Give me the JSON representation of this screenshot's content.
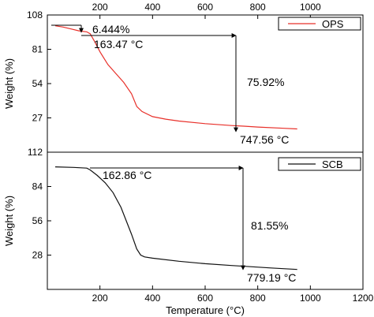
{
  "chart_data": [
    {
      "type": "line",
      "name": "top-panel",
      "xlim": [
        0,
        1200
      ],
      "ylim": [
        0,
        108
      ],
      "top_x_ticks": [
        "200",
        "400",
        "600",
        "800",
        "1000"
      ],
      "y_ticks": [
        "27",
        "54",
        "81",
        "108"
      ],
      "ylabel": "Weight (%)",
      "legend": {
        "label": "OPS",
        "color": "#e8302a",
        "position": "top-right"
      },
      "series": [
        {
          "name": "OPS",
          "color": "#e8302a",
          "x": [
            30,
            60,
            90,
            120,
            150,
            163,
            180,
            200,
            230,
            260,
            290,
            320,
            340,
            360,
            400,
            450,
            500,
            600,
            700,
            747,
            800,
            900,
            950
          ],
          "y": [
            99.5,
            98.5,
            97,
            95.5,
            94.7,
            93.2,
            87,
            79,
            69,
            62,
            55,
            46,
            36,
            32,
            28,
            26,
            24.5,
            22.5,
            21,
            20.5,
            19.8,
            18.8,
            18.3
          ]
        }
      ],
      "annotations": [
        {
          "text": "6.444%"
        },
        {
          "text": "163.47 °C"
        },
        {
          "text": "75.92%"
        },
        {
          "text": "747.56 °C"
        }
      ]
    },
    {
      "type": "line",
      "name": "bottom-panel",
      "xlim": [
        0,
        1200
      ],
      "ylim": [
        0,
        112
      ],
      "x_ticks": [
        "200",
        "400",
        "600",
        "800",
        "1000",
        "1200"
      ],
      "y_ticks": [
        "28",
        "56",
        "84",
        "112"
      ],
      "xlabel": "Temperature (°C)",
      "ylabel": "Weight (%)",
      "legend": {
        "label": "SCB",
        "color": "#111111",
        "position": "top-right"
      },
      "series": [
        {
          "name": "SCB",
          "color": "#111111",
          "x": [
            30,
            100,
            150,
            163,
            190,
            220,
            250,
            280,
            300,
            320,
            340,
            355,
            370,
            400,
            500,
            600,
            700,
            779,
            850,
            950
          ],
          "y": [
            100,
            99.6,
            99,
            97.5,
            93,
            87,
            79,
            67,
            56,
            45,
            33,
            28,
            26.5,
            25.5,
            23,
            21,
            19.5,
            18.5,
            17.5,
            16.3
          ]
        }
      ],
      "annotations": [
        {
          "text": "162.86 °C"
        },
        {
          "text": "81.55%"
        },
        {
          "text": "779.19 °C"
        }
      ]
    }
  ]
}
